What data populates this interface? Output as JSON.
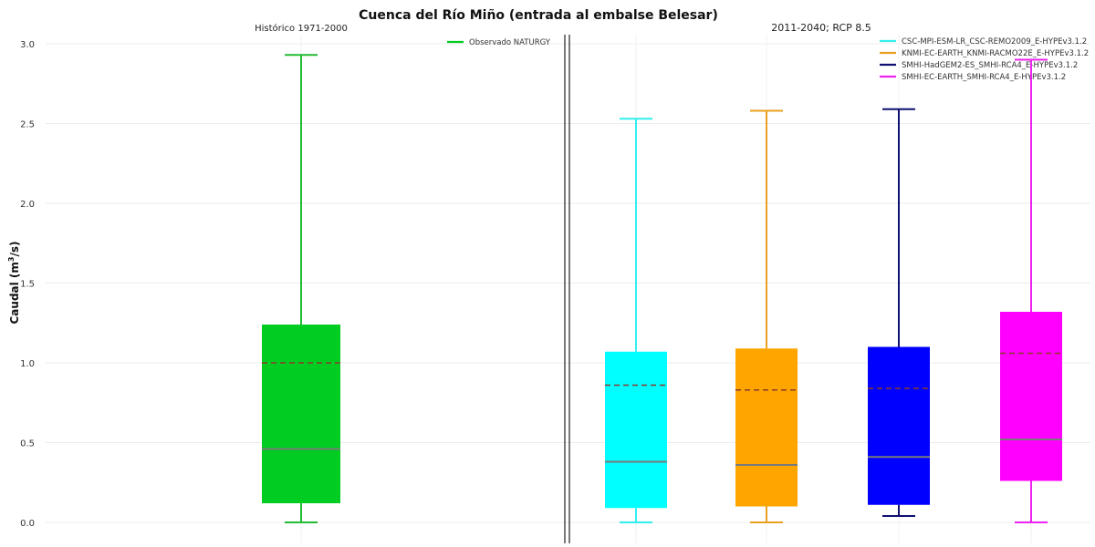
{
  "chart_data": {
    "type": "box",
    "title": "Cuenca del Río Miño (entrada al embalse Belesar)",
    "ylabel_main": "Caudal (m",
    "ylabel_sup": "3",
    "ylabel_tail": "/s)",
    "ylim": [
      0,
      3.0
    ],
    "yticks": [
      "0.0",
      "0.5",
      "1.0",
      "1.5",
      "2.0",
      "2.5",
      "3.0"
    ],
    "grid": true,
    "panels": [
      {
        "title": "Histórico 1971-2000",
        "legend": [
          "Observado NATURGY"
        ],
        "boxes": [
          {
            "name": "Observado NATURGY",
            "color": "#00cc22",
            "whisker_color": "#22bb33",
            "min": 0.0,
            "q1": 0.12,
            "median": 0.46,
            "mean": 1.0,
            "q3": 1.24,
            "max": 2.93
          }
        ]
      },
      {
        "title": "2011-2040; RCP 8.5",
        "legend": [
          "CSC-MPI-ESM-LR_CSC-REMO2009_E-HYPEv3.1.2",
          "KNMI-EC-EARTH_KNMI-RACMO22E_E-HYPEv3.1.2",
          "SMHI-HadGEM2-ES_SMHI-RCA4_E-HYPEv3.1.2",
          "SMHI-EC-EARTH_SMHI-RCA4_E-HYPEv3.1.2"
        ],
        "boxes": [
          {
            "name": "CSC-MPI-ESM-LR_CSC-REMO2009_E-HYPEv3.1.2",
            "color": "#00ffff",
            "whisker_color": "#33eeee",
            "min": 0.0,
            "q1": 0.09,
            "median": 0.38,
            "mean": 0.86,
            "q3": 1.07,
            "max": 2.53
          },
          {
            "name": "KNMI-EC-EARTH_KNMI-RACMO22E_E-HYPEv3.1.2",
            "color": "#ffa500",
            "whisker_color": "#e8a020",
            "min": 0.0,
            "q1": 0.1,
            "median": 0.36,
            "mean": 0.83,
            "q3": 1.09,
            "max": 2.58
          },
          {
            "name": "SMHI-HadGEM2-ES_SMHI-RCA4_E-HYPEv3.1.2",
            "color": "#0000ff",
            "whisker_color": "#101070",
            "min": 0.04,
            "q1": 0.11,
            "median": 0.41,
            "mean": 0.84,
            "q3": 1.1,
            "max": 2.59
          },
          {
            "name": "SMHI-EC-EARTH_SMHI-RCA4_E-HYPEv3.1.2",
            "color": "#ff00ff",
            "whisker_color": "#ee22ee",
            "min": 0.0,
            "q1": 0.26,
            "median": 0.52,
            "mean": 1.06,
            "q3": 1.32,
            "max": 2.9
          }
        ]
      }
    ]
  }
}
